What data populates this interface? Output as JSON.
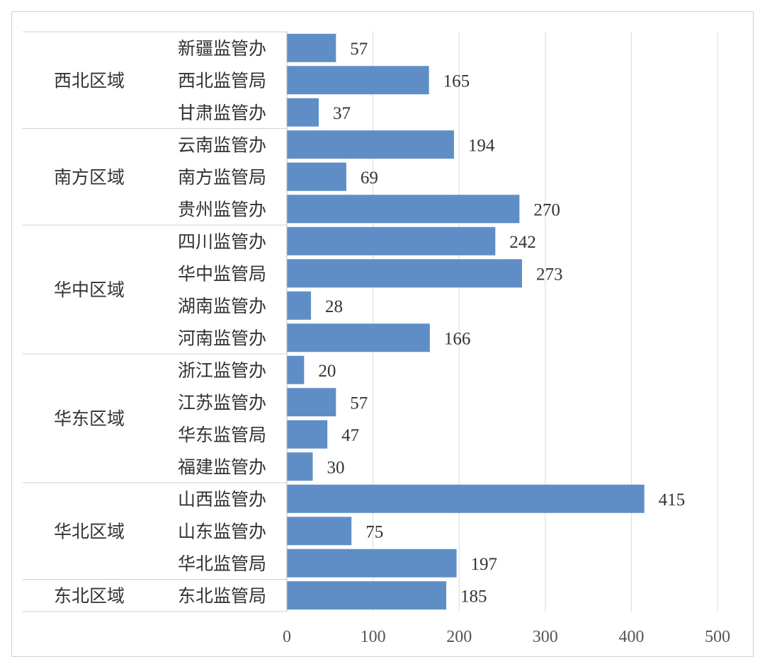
{
  "chart_data": {
    "type": "bar",
    "orientation": "horizontal",
    "title": "",
    "xlabel": "",
    "ylabel": "",
    "xlim": [
      0,
      500
    ],
    "x_ticks": [
      0,
      100,
      200,
      300,
      400,
      500
    ],
    "grid": "vertical",
    "legend": "none",
    "bar_color": "#5f8ec6",
    "groups": [
      {
        "name": "西北区域",
        "items": [
          {
            "category": "新疆监管办",
            "value": 57
          },
          {
            "category": "西北监管局",
            "value": 165
          },
          {
            "category": "甘肃监管办",
            "value": 37
          }
        ]
      },
      {
        "name": "南方区域",
        "items": [
          {
            "category": "云南监管办",
            "value": 194
          },
          {
            "category": "南方监管局",
            "value": 69
          },
          {
            "category": "贵州监管办",
            "value": 270
          }
        ]
      },
      {
        "name": "华中区域",
        "items": [
          {
            "category": "四川监管办",
            "value": 242
          },
          {
            "category": "华中监管局",
            "value": 273
          },
          {
            "category": "湖南监管办",
            "value": 28
          },
          {
            "category": "河南监管办",
            "value": 166
          }
        ]
      },
      {
        "name": "华东区域",
        "items": [
          {
            "category": "浙江监管办",
            "value": 20
          },
          {
            "category": "江苏监管办",
            "value": 57
          },
          {
            "category": "华东监管局",
            "value": 47
          },
          {
            "category": "福建监管办",
            "value": 30
          }
        ]
      },
      {
        "name": "华北区域",
        "items": [
          {
            "category": "山西监管办",
            "value": 415
          },
          {
            "category": "山东监管办",
            "value": 75
          },
          {
            "category": "华北监管局",
            "value": 197
          }
        ]
      },
      {
        "name": "东北区域",
        "items": [
          {
            "category": "东北监管局",
            "value": 185
          }
        ]
      }
    ]
  }
}
